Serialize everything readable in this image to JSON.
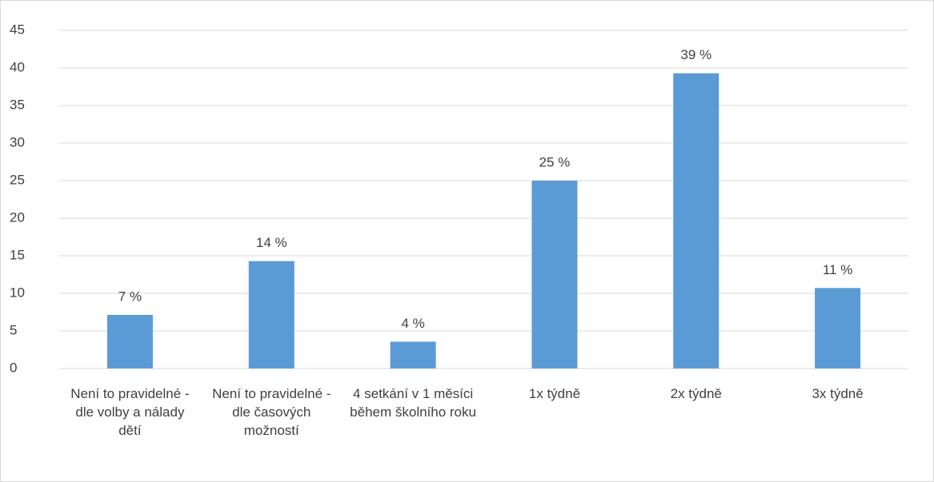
{
  "chart_data": {
    "type": "bar",
    "categories": [
      "Není to pravidelné - dle volby a nálady dětí",
      "Není to pravidelné - dle časových možností",
      "4 setkání v 1 měsíci během školního roku",
      "1x týdně",
      "2x týdně",
      "3x týdně"
    ],
    "values": [
      7.14,
      14.29,
      3.57,
      25,
      39.29,
      10.71
    ],
    "value_labels": [
      "7 %",
      "14 %",
      "4 %",
      "25 %",
      "39 %",
      "11 %"
    ],
    "color": "#5b9bd5",
    "ylim": [
      0,
      45
    ],
    "yticks": [
      0,
      5,
      10,
      15,
      20,
      25,
      30,
      35,
      40,
      45
    ],
    "grid": true
  }
}
